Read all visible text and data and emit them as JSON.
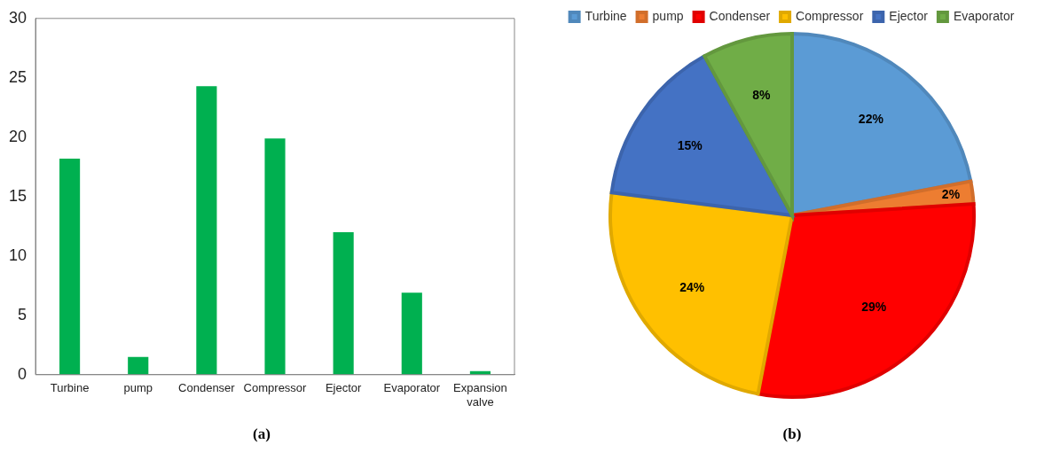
{
  "chart_data": [
    {
      "type": "bar",
      "categories": [
        "Turbine",
        "pump",
        "Condenser",
        "Compressor",
        "Ejector",
        "Evaporator",
        "Expansion valve"
      ],
      "values": [
        18.2,
        1.5,
        24.3,
        19.9,
        12.0,
        6.9,
        0.3
      ],
      "color": "#00b050",
      "ylim": [
        0,
        30
      ],
      "yticks": [
        0,
        5,
        10,
        15,
        20,
        25,
        30
      ],
      "grid": false,
      "legend": false,
      "annotations": [
        "(a)"
      ]
    },
    {
      "type": "pie",
      "categories": [
        "Turbine",
        "pump",
        "Condenser",
        "Compressor",
        "Ejector",
        "Evaporator"
      ],
      "values": [
        22,
        2,
        29,
        24,
        15,
        8
      ],
      "colors": [
        "#5b9bd5",
        "#ed7d31",
        "#ff0000",
        "#ffc000",
        "#4472c4",
        "#70ad47"
      ],
      "value_labels": [
        "22%",
        "2%",
        "29%",
        "24%",
        "15%",
        "8%"
      ],
      "legend": "top",
      "annotations": [
        "(b)"
      ]
    }
  ]
}
